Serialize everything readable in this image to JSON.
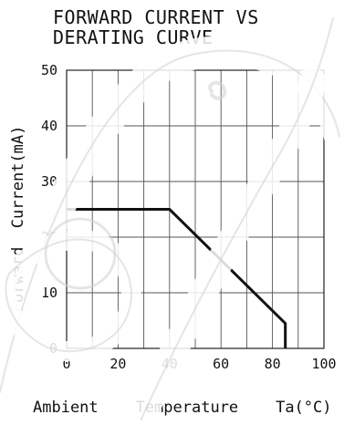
{
  "chart_data": {
    "type": "line",
    "title_lines": [
      "FORWARD CURRENT VS",
      "DERATING CURVE"
    ],
    "xlabel": "Ambient    Temperature    Ta(°C)",
    "ylabel": "Forward  Current(mA)",
    "xlim": [
      0,
      100
    ],
    "ylim": [
      0,
      50
    ],
    "x_ticks": [
      0,
      20,
      40,
      60,
      80,
      100
    ],
    "y_ticks": [
      0,
      10,
      20,
      30,
      40,
      50
    ],
    "x_tick_labels": [
      "0",
      "20",
      "40",
      "60",
      "80",
      "100"
    ],
    "y_tick_labels": [
      "0",
      "10",
      "20",
      "30",
      "40",
      "50"
    ],
    "grid": true,
    "series": [
      {
        "x": [
          0,
          40,
          85,
          85
        ],
        "y": [
          25,
          25,
          4.5,
          0
        ]
      }
    ]
  },
  "colors": {
    "line": "#111111",
    "grid": "#555555",
    "text": "#111111",
    "background": "#ffffff",
    "watermark": "#cfcfcf"
  }
}
